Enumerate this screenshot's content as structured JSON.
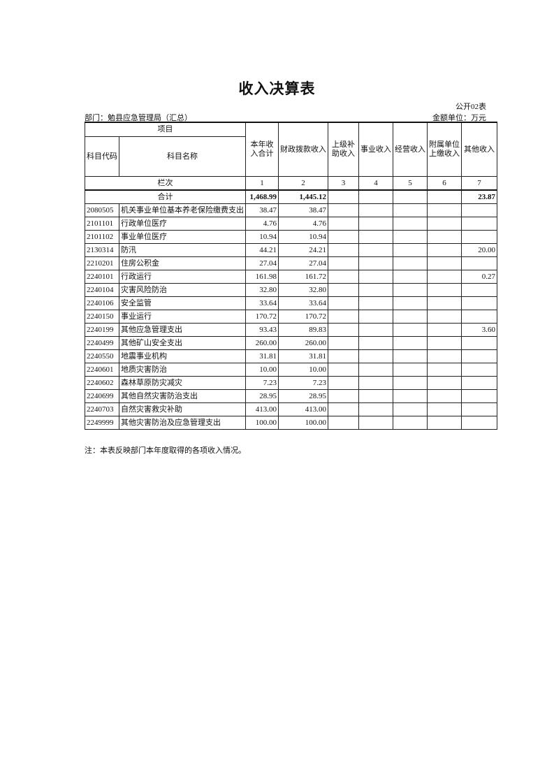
{
  "title": "收入决算表",
  "form_no": "公开02表",
  "department": "部门：勉县应急管理局（汇总）",
  "unit": "金额单位：万元",
  "header": {
    "item": "项目",
    "code": "科目代码",
    "name": "科目名称",
    "cols": [
      "本年收入合计",
      "财政拨款收入",
      "上级补助收入",
      "事业收入",
      "经营收入",
      "附属单位上缴收入",
      "其他收入"
    ],
    "col_index_label": "栏次",
    "col_index": [
      "1",
      "2",
      "3",
      "4",
      "5",
      "6",
      "7"
    ]
  },
  "total": {
    "label": "合计",
    "values": [
      "1,468.99",
      "1,445.12",
      "",
      "",
      "",
      "",
      "23.87"
    ]
  },
  "rows": [
    {
      "code": "2080505",
      "name": "机关事业单位基本养老保险缴费支出",
      "values": [
        "38.47",
        "38.47",
        "",
        "",
        "",
        "",
        ""
      ]
    },
    {
      "code": "2101101",
      "name": "行政单位医疗",
      "values": [
        "4.76",
        "4.76",
        "",
        "",
        "",
        "",
        ""
      ]
    },
    {
      "code": "2101102",
      "name": "事业单位医疗",
      "values": [
        "10.94",
        "10.94",
        "",
        "",
        "",
        "",
        ""
      ]
    },
    {
      "code": "2130314",
      "name": "防汛",
      "values": [
        "44.21",
        "24.21",
        "",
        "",
        "",
        "",
        "20.00"
      ]
    },
    {
      "code": "2210201",
      "name": "住房公积金",
      "values": [
        "27.04",
        "27.04",
        "",
        "",
        "",
        "",
        ""
      ]
    },
    {
      "code": "2240101",
      "name": "行政运行",
      "values": [
        "161.98",
        "161.72",
        "",
        "",
        "",
        "",
        "0.27"
      ]
    },
    {
      "code": "2240104",
      "name": "灾害风险防治",
      "values": [
        "32.80",
        "32.80",
        "",
        "",
        "",
        "",
        ""
      ]
    },
    {
      "code": "2240106",
      "name": "安全监管",
      "values": [
        "33.64",
        "33.64",
        "",
        "",
        "",
        "",
        ""
      ]
    },
    {
      "code": "2240150",
      "name": "事业运行",
      "values": [
        "170.72",
        "170.72",
        "",
        "",
        "",
        "",
        ""
      ]
    },
    {
      "code": "2240199",
      "name": "其他应急管理支出",
      "values": [
        "93.43",
        "89.83",
        "",
        "",
        "",
        "",
        "3.60"
      ]
    },
    {
      "code": "2240499",
      "name": "其他矿山安全支出",
      "values": [
        "260.00",
        "260.00",
        "",
        "",
        "",
        "",
        ""
      ]
    },
    {
      "code": "2240550",
      "name": "地震事业机构",
      "values": [
        "31.81",
        "31.81",
        "",
        "",
        "",
        "",
        ""
      ]
    },
    {
      "code": "2240601",
      "name": "地质灾害防治",
      "values": [
        "10.00",
        "10.00",
        "",
        "",
        "",
        "",
        ""
      ]
    },
    {
      "code": "2240602",
      "name": "森林草原防灾减灾",
      "values": [
        "7.23",
        "7.23",
        "",
        "",
        "",
        "",
        ""
      ]
    },
    {
      "code": "2240699",
      "name": "其他自然灾害防治支出",
      "values": [
        "28.95",
        "28.95",
        "",
        "",
        "",
        "",
        ""
      ]
    },
    {
      "code": "2240703",
      "name": "自然灾害救灾补助",
      "values": [
        "413.00",
        "413.00",
        "",
        "",
        "",
        "",
        ""
      ]
    },
    {
      "code": "2249999",
      "name": "其他灾害防治及应急管理支出",
      "values": [
        "100.00",
        "100.00",
        "",
        "",
        "",
        "",
        ""
      ]
    }
  ],
  "note": "注：本表反映部门本年度取得的各项收入情况。"
}
